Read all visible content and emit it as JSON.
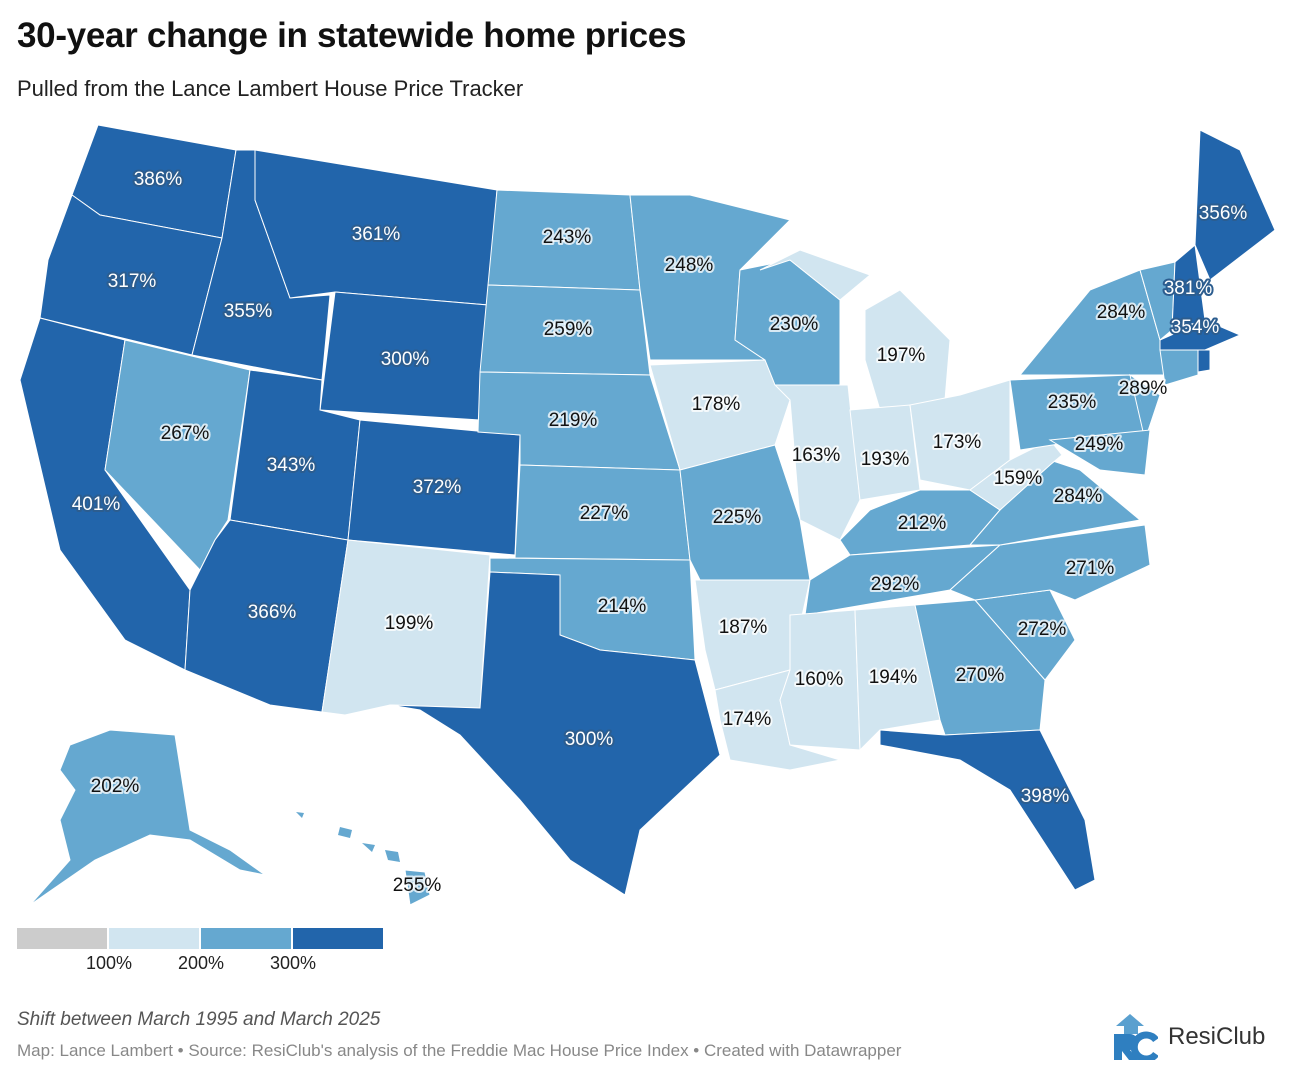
{
  "title": "30-year change in statewide home prices",
  "subtitle": "Pulled from the Lance Lambert House Price Tracker",
  "colors": {
    "below_100": "#cccccc",
    "100_200": "#d1e5f0",
    "200_300": "#65a8d0",
    "300_plus": "#2265ab"
  },
  "legend": {
    "ticks": [
      "100%",
      "200%",
      "300%"
    ]
  },
  "states": {
    "WA": {
      "value": "386%"
    },
    "OR": {
      "value": "317%"
    },
    "CA": {
      "value": "401%"
    },
    "NV": {
      "value": "267%"
    },
    "ID": {
      "value": "355%"
    },
    "MT": {
      "value": "361%"
    },
    "WY": {
      "value": "300%"
    },
    "UT": {
      "value": "343%"
    },
    "CO": {
      "value": "372%"
    },
    "AZ": {
      "value": "366%"
    },
    "NM": {
      "value": "199%"
    },
    "ND": {
      "value": "243%"
    },
    "SD": {
      "value": "259%"
    },
    "NE": {
      "value": "219%"
    },
    "KS": {
      "value": "227%"
    },
    "OK": {
      "value": "214%"
    },
    "TX": {
      "value": "300%"
    },
    "MN": {
      "value": "248%"
    },
    "IA": {
      "value": "178%"
    },
    "MO": {
      "value": "225%"
    },
    "AR": {
      "value": "187%"
    },
    "LA": {
      "value": "174%"
    },
    "WI": {
      "value": "230%"
    },
    "IL": {
      "value": "163%"
    },
    "MI": {
      "value": "197%"
    },
    "IN": {
      "value": "193%"
    },
    "OH": {
      "value": "173%"
    },
    "KY": {
      "value": "212%"
    },
    "TN": {
      "value": "292%"
    },
    "MS": {
      "value": "160%"
    },
    "AL": {
      "value": "194%"
    },
    "GA": {
      "value": "270%"
    },
    "FL": {
      "value": "398%"
    },
    "SC": {
      "value": "272%"
    },
    "NC": {
      "value": "271%"
    },
    "VA": {
      "value": "284%"
    },
    "WV": {
      "value": "159%"
    },
    "PA": {
      "value": "235%"
    },
    "NY": {
      "value": "284%"
    },
    "NJ": {
      "value": "289%"
    },
    "MD": {
      "value": "249%"
    },
    "VT": {
      "value": "284%"
    },
    "NH": {
      "value": "381%"
    },
    "ME": {
      "value": "356%"
    },
    "MA": {
      "value": "354%"
    },
    "CT": {
      "value": "289%"
    },
    "RI": {
      "value": "354%"
    },
    "DE": {
      "value": "249%"
    },
    "AK": {
      "value": "202%"
    },
    "HI": {
      "value": "255%"
    }
  },
  "note": "Shift between March 1995 and March 2025",
  "source": "Map: Lance Lambert • Source: ResiClub's analysis of the Freddie Mac House Price Index • Created with Datawrapper",
  "logo_text": "ResiClub"
}
